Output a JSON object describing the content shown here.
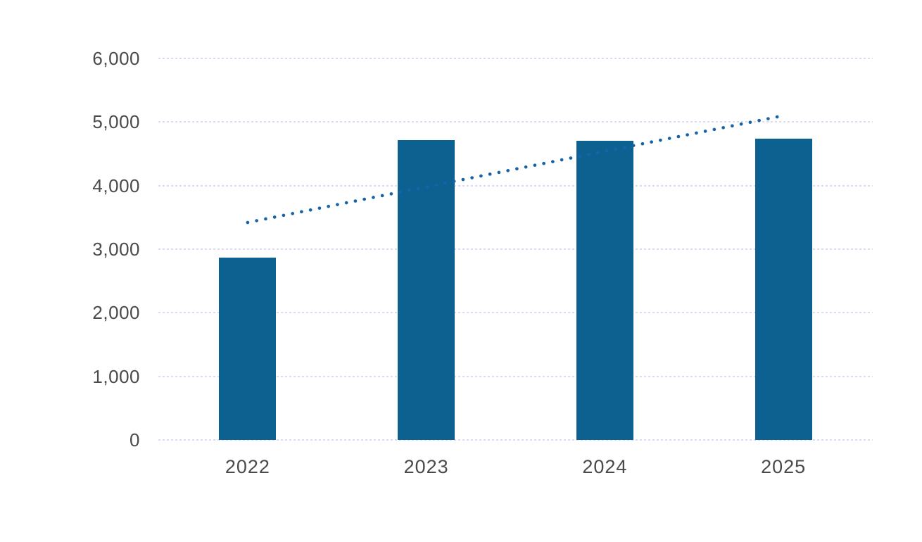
{
  "chart_data": {
    "type": "bar",
    "title": "",
    "categories": [
      "2022",
      "2023",
      "2024",
      "2025"
    ],
    "series": [
      {
        "name": "value",
        "type": "bar",
        "values": [
          2870,
          4720,
          4700,
          4740
        ]
      },
      {
        "name": "linear-trend",
        "type": "dotted-line",
        "values": [
          3420,
          3980,
          4540,
          5100
        ]
      }
    ],
    "xlabel": "",
    "ylabel": "",
    "ylim": [
      0,
      6000
    ],
    "ytick_interval": 1000,
    "ytick_labels": [
      "0",
      "1,000",
      "2,000",
      "3,000",
      "4,000",
      "5,000",
      "6,000"
    ],
    "grid": "horizontal-dotted",
    "legend_position": "none",
    "colors": {
      "bar": "#0d6191",
      "trendline": "#1563a8",
      "gridline": "#dcdaf0",
      "axis_text": "#4a4a4b",
      "background": "#ffffff"
    }
  }
}
